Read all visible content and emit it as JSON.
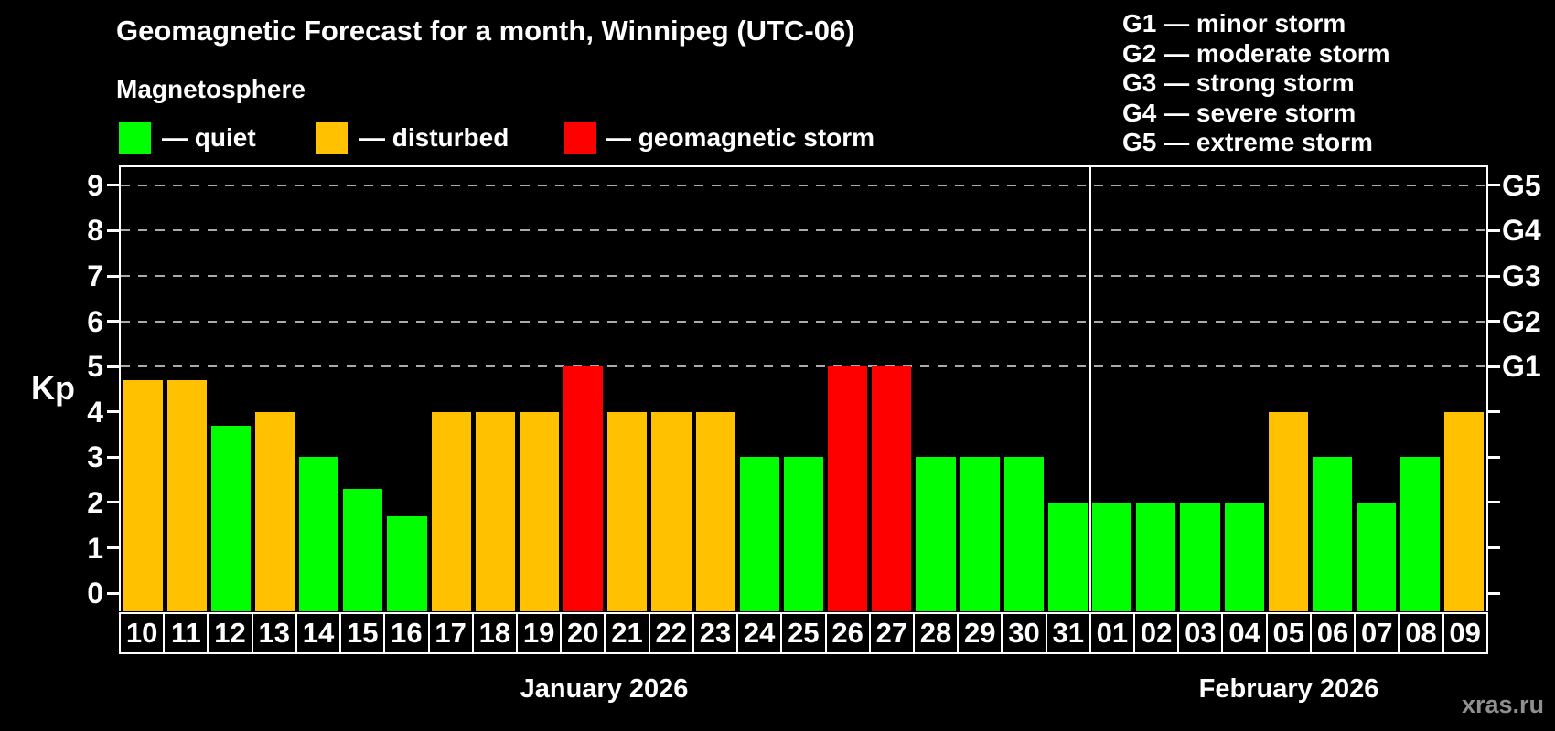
{
  "header": {
    "title": "Geomagnetic Forecast for a month, Winnipeg (UTC-06)",
    "subtitle": "Magnetosphere"
  },
  "legend": {
    "items": [
      {
        "label": "— quiet",
        "color": "#00ff00",
        "key": "quiet"
      },
      {
        "label": "— disturbed",
        "color": "#ffc100",
        "key": "disturbed"
      },
      {
        "label": "— geomagnetic storm",
        "color": "#ff0000",
        "key": "storm"
      }
    ]
  },
  "g_legend": [
    "G1 — minor storm",
    "G2 — moderate storm",
    "G3 — strong storm",
    "G4 — severe storm",
    "G5 — extreme storm"
  ],
  "axis": {
    "kp_label": "Kp",
    "left_ticks": [
      "0",
      "1",
      "2",
      "3",
      "4",
      "5",
      "6",
      "7",
      "8",
      "9"
    ],
    "right_labels": [
      {
        "kp": 5,
        "label": "G1"
      },
      {
        "kp": 6,
        "label": "G2"
      },
      {
        "kp": 7,
        "label": "G3"
      },
      {
        "kp": 8,
        "label": "G4"
      },
      {
        "kp": 9,
        "label": "G5"
      }
    ]
  },
  "months": [
    {
      "label": "January 2026"
    },
    {
      "label": "February 2026"
    }
  ],
  "footer": {
    "watermark": "xras.ru"
  },
  "chart_data": {
    "type": "bar",
    "title": "Geomagnetic Forecast for a month, Winnipeg (UTC-06)",
    "xlabel": "",
    "ylabel": "Kp",
    "ylim": [
      0,
      9
    ],
    "grid_kp": [
      5,
      6,
      7,
      8,
      9
    ],
    "legend_position": "top",
    "categories": [
      "10",
      "11",
      "12",
      "13",
      "14",
      "15",
      "16",
      "17",
      "18",
      "19",
      "20",
      "21",
      "22",
      "23",
      "24",
      "25",
      "26",
      "27",
      "28",
      "29",
      "30",
      "31",
      "01",
      "02",
      "03",
      "04",
      "05",
      "06",
      "07",
      "08",
      "09"
    ],
    "values": [
      4.7,
      4.7,
      3.7,
      4,
      3,
      2.3,
      1.7,
      4,
      4,
      4,
      5,
      4,
      4,
      4,
      3,
      3,
      5,
      5,
      3,
      3,
      3,
      2,
      2,
      2,
      2,
      2,
      4,
      3,
      2,
      3,
      4
    ],
    "status": [
      "disturbed",
      "disturbed",
      "quiet",
      "disturbed",
      "quiet",
      "quiet",
      "quiet",
      "disturbed",
      "disturbed",
      "disturbed",
      "storm",
      "disturbed",
      "disturbed",
      "disturbed",
      "quiet",
      "quiet",
      "storm",
      "storm",
      "quiet",
      "quiet",
      "quiet",
      "quiet",
      "quiet",
      "quiet",
      "quiet",
      "quiet",
      "disturbed",
      "quiet",
      "quiet",
      "quiet",
      "disturbed"
    ],
    "month_split_index": 22,
    "colors": {
      "quiet": "#00ff00",
      "disturbed": "#ffc100",
      "storm": "#ff0000",
      "grid": "#aaaaaa",
      "axis": "#ffffff",
      "text": "#ffffff",
      "watermark": "#8f8f8f",
      "background": "#000000"
    }
  }
}
